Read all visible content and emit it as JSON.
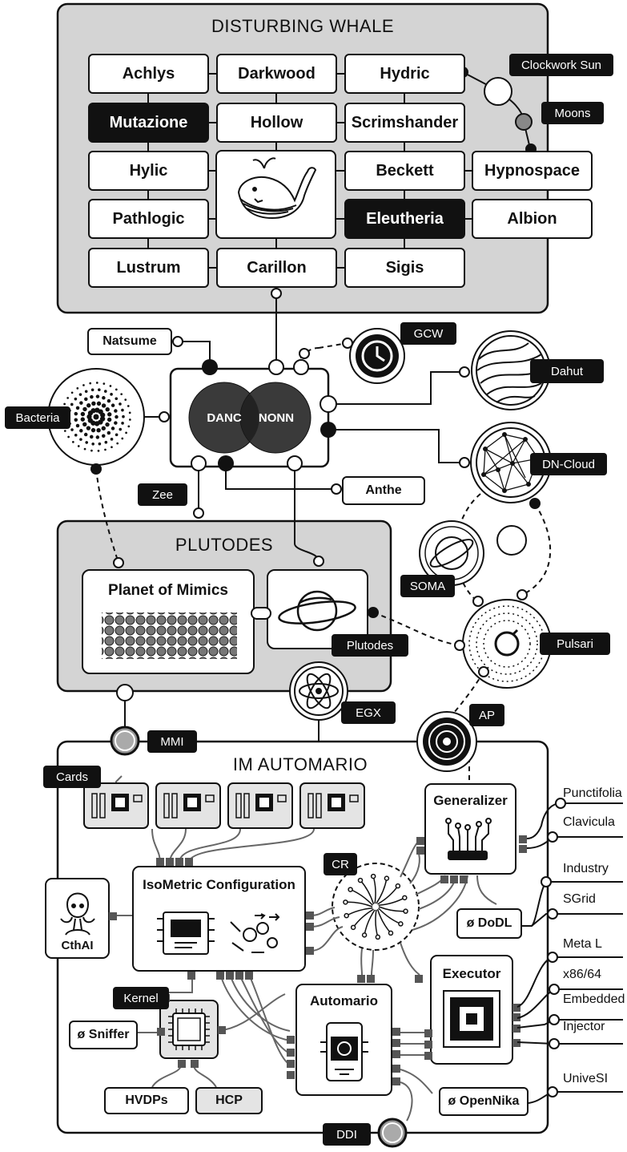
{
  "title": "DISTURBING WHALE",
  "grid_cells": {
    "achlys": "Achlys",
    "darkwood": "Darkwood",
    "hydric": "Hydric",
    "mutazione": "Mutazione",
    "hollow": "Hollow",
    "scrimshander": "Scrimshander",
    "hylic": "Hylic",
    "beckett": "Beckett",
    "hypnospace": "Hypnospace",
    "pathlogic": "Pathlogic",
    "eleutheria": "Eleutheria",
    "albion": "Albion",
    "lustrum": "Lustrum",
    "carillon": "Carillon",
    "sigis": "Sigis"
  },
  "tags": {
    "clockwork_sun": "Clockwork Sun",
    "moons": "Moons",
    "gcw": "GCW",
    "dahut": "Dahut",
    "bacteria": "Bacteria",
    "dn_cloud": "DN-Cloud",
    "zee": "Zee",
    "soma": "SOMA",
    "plutodes": "Plutodes",
    "pulsari": "Pulsari",
    "egx": "EGX",
    "ap": "AP",
    "mmi": "MMI",
    "cards": "Cards",
    "cr": "CR",
    "kernel": "Kernel",
    "ddi": "DDI"
  },
  "boxes": {
    "natsume": "Natsume",
    "anthe": "Anthe",
    "dodl": "ø DoDL",
    "cthai": "CthAI",
    "sniffer": "ø Sniffer",
    "hvdps": "HVDPs",
    "hcp": "HCP",
    "opennika": "ø OpenNika"
  },
  "venn": {
    "left": "DANC",
    "right": "NONN"
  },
  "plutodes": {
    "title": "PLUTODES",
    "planet_of_mimics": "Planet of Mimics"
  },
  "automario": {
    "title": "IM AUTOMARIO",
    "generalizer": "Generalizer",
    "isometric": "IsoMetric Configuration",
    "automario": "Automario",
    "executor": "Executor"
  },
  "outputs": [
    "Punctifolia",
    "Clavicula",
    "Industry",
    "SGrid",
    "Meta L",
    "x86/64",
    "Embedded",
    "Injector",
    "UniveSI"
  ]
}
